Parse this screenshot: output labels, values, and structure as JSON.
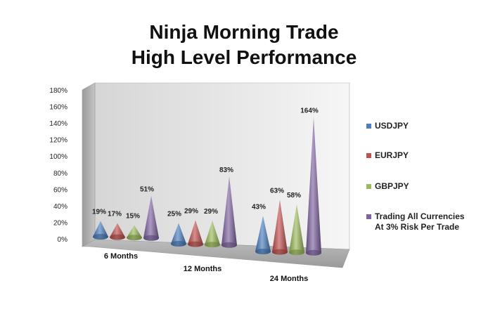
{
  "chart_data": {
    "type": "bar",
    "title": "Ninja Morning Trade",
    "subtitle": "High Level Performance",
    "categories": [
      "6 Months",
      "12 Months",
      "24 Months"
    ],
    "series": [
      {
        "name": "USDJPY",
        "color": "#4a7fc1",
        "values": [
          19,
          25,
          43
        ],
        "labels": [
          "19%",
          "25%",
          "43%"
        ]
      },
      {
        "name": "EURJPY",
        "color": "#c0504d",
        "values": [
          17,
          29,
          63
        ],
        "labels": [
          "17%",
          "29%",
          "63%"
        ]
      },
      {
        "name": "GBPJPY",
        "color": "#9bbb59",
        "values": [
          15,
          29,
          58
        ],
        "labels": [
          "15%",
          "29%",
          "58%"
        ]
      },
      {
        "name": "Trading All Currencies\nAt 3% Risk Per Trade",
        "color": "#8064a2",
        "values": [
          51,
          83,
          164
        ],
        "labels": [
          "51%",
          "83%",
          "164%"
        ]
      }
    ],
    "yticks": [
      "0%",
      "20%",
      "40%",
      "60%",
      "80%",
      "100%",
      "120%",
      "140%",
      "160%",
      "180%"
    ],
    "ylim": [
      0,
      180
    ],
    "grid": false,
    "legend": "right",
    "mark_shape": "cone"
  }
}
